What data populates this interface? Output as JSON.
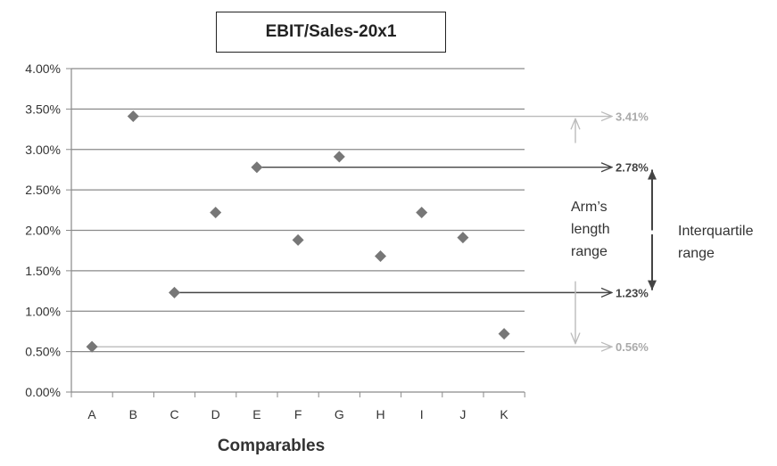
{
  "chart_data": {
    "type": "scatter",
    "title": "EBIT/Sales-20x1",
    "xlabel": "Comparables",
    "ylabel": "",
    "categories": [
      "A",
      "B",
      "C",
      "D",
      "E",
      "F",
      "G",
      "H",
      "I",
      "J",
      "K"
    ],
    "values": [
      0.56,
      3.41,
      1.23,
      2.22,
      2.78,
      1.88,
      2.91,
      1.68,
      2.22,
      1.91,
      0.72
    ],
    "ylim": [
      0,
      4
    ],
    "yticks": [
      "0.00%",
      "0.50%",
      "1.00%",
      "1.50%",
      "2.00%",
      "2.50%",
      "3.00%",
      "3.50%",
      "4.00%"
    ],
    "grid": true,
    "marker_color": "#777777",
    "reference_lines": [
      {
        "label": "3.41%",
        "value": 3.41,
        "from": "B",
        "color": "#bbbbbb"
      },
      {
        "label": "2.78%",
        "value": 2.78,
        "from": "E",
        "color": "#444444"
      },
      {
        "label": "1.23%",
        "value": 1.23,
        "from": "C",
        "color": "#444444"
      },
      {
        "label": "0.56%",
        "value": 0.56,
        "from": "A",
        "color": "#bbbbbb"
      }
    ],
    "annotations": {
      "arms_length": [
        "Arm’s",
        "length",
        "range"
      ],
      "interquartile": [
        "Interquartile",
        "range"
      ]
    }
  }
}
